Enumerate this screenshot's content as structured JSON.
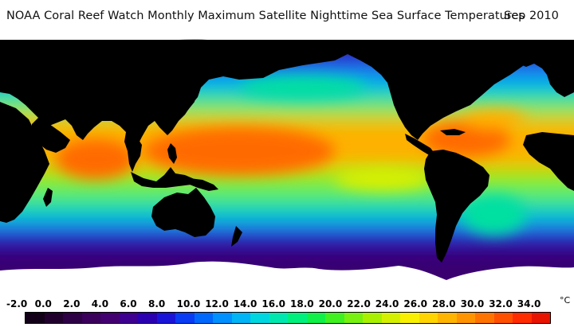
{
  "title": "NOAA Coral Reef Watch Monthly Maximum Satellite Nighttime Sea Surface Temperatures",
  "date": "Sep 2010",
  "legend": {
    "unit": "°C",
    "ticks": [
      "-2.0",
      "0.0",
      "2.0",
      "4.0",
      "6.0",
      "8.0",
      "10.0",
      "12.0",
      "14.0",
      "16.0",
      "18.0",
      "20.0",
      "22.0",
      "24.0",
      "26.0",
      "28.0",
      "30.0",
      "32.0",
      "34.0"
    ],
    "colors": [
      "#120018",
      "#22002e",
      "#2e0046",
      "#3a005c",
      "#430070",
      "#3d0090",
      "#2a00b0",
      "#1a14d8",
      "#0a3cf4",
      "#0068fc",
      "#0090ff",
      "#00b4f6",
      "#00d6e0",
      "#00e8b0",
      "#00f07e",
      "#10f048",
      "#40f020",
      "#78f010",
      "#a8f000",
      "#d4f000",
      "#f8f000",
      "#ffd400",
      "#ffb400",
      "#ff9400",
      "#ff7400",
      "#ff5000",
      "#ff2c00",
      "#e81400"
    ]
  },
  "map": {
    "land_color": "#000000",
    "ice_color": "#ffffff",
    "palette": {
      "polar": "#3a0070",
      "subpolar": "#2a10c8",
      "cool": "#0096ff",
      "temperate": "#00e0a0",
      "warm": "#7cf014",
      "subtropical": "#d8f000",
      "tropical": "#ffb000",
      "hot": "#ff6a00"
    }
  }
}
